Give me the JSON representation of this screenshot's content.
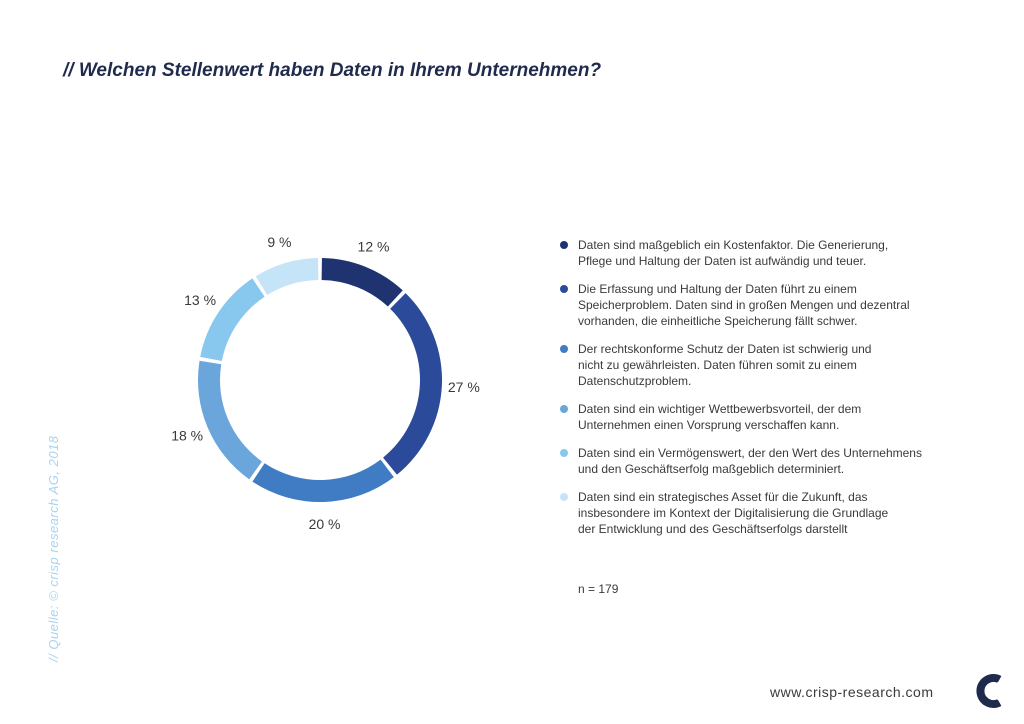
{
  "title": "// Welchen Stellenwert haben Daten in Ihrem Unternehmen?",
  "source": "// Quelle: © crisp research AG, 2018",
  "chart_data": {
    "type": "pie",
    "values": [
      12,
      27,
      20,
      18,
      13,
      9
    ],
    "labels": [
      "12 %",
      "27 %",
      "20 %",
      "18 %",
      "13 %",
      "9 %"
    ],
    "colors": [
      "#1f3370",
      "#2b4a9a",
      "#3f7cc4",
      "#6aa6dc",
      "#88c7ee",
      "#c6e4f8"
    ],
    "legend": [
      "Daten sind maßgeblich ein Kostenfaktor. Die Generierung,\nPflege und Haltung der Daten ist aufwändig und teuer.",
      "Die Erfassung und Haltung der Daten führt zu einem\nSpeicherproblem. Daten sind in großen Mengen und dezentral\nvorhanden, die einheitliche Speicherung fällt schwer.",
      "Der rechtskonforme Schutz der Daten ist schwierig und\nnicht zu gewährleisten. Daten führen somit zu einem\nDatenschutzproblem.",
      "Daten sind ein wichtiger Wettbewerbsvorteil, der dem\nUnternehmen einen Vorsprung verschaffen kann.",
      "Daten sind ein Vermögenswert, der den Wert des Unternehmens\nund den Geschäftserfolg maßgeblich determiniert.",
      "Daten sind ein strategisches Asset für die Zukunft, das\ninsbesondere im Kontext der Digitalisierung die Grundlage\nder Entwicklung und des Geschäftserfolgs darstellt"
    ],
    "legend_position": "right"
  },
  "sample": "n = 179",
  "website": "www.crisp-research.com",
  "logo_icon": "crisp-logo-icon"
}
